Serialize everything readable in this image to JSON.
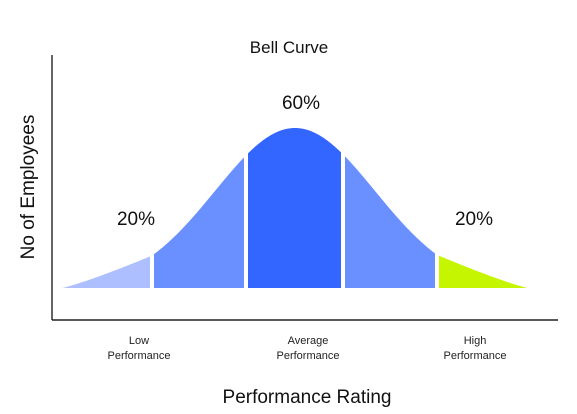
{
  "chart_data": {
    "type": "area",
    "title": "Bell Curve",
    "xlabel": "Performance Rating",
    "ylabel": "No of Employees",
    "grid": false,
    "legend": "none",
    "segments": [
      {
        "category": [
          "Low",
          "Performance"
        ],
        "value_label": "20%",
        "value": 20,
        "color": "#aebfff"
      },
      {
        "category": [
          "Average",
          "Performance"
        ],
        "value_label": "60%",
        "value": 60,
        "color": "#3366ff"
      },
      {
        "category": [
          "High",
          "Performance"
        ],
        "value_label": "20%",
        "value": 20,
        "color": "#c6f500"
      }
    ],
    "shoulder_color": "#6a8fff"
  }
}
